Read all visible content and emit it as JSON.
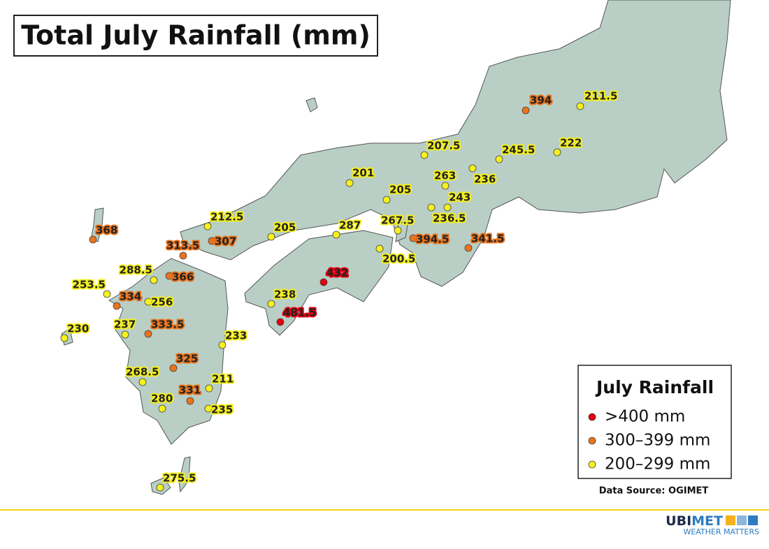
{
  "title": "Total July Rainfall (mm)",
  "stations": [
    {
      "value": 394,
      "color": "#e8741c"
    },
    {
      "value": 211.5,
      "color": "#f5f01e"
    },
    {
      "value": 207.5,
      "color": "#f5f01e"
    },
    {
      "value": 245.5,
      "color": "#f5f01e"
    },
    {
      "value": 222,
      "color": "#f5f01e"
    },
    {
      "value": 201,
      "color": "#f5f01e"
    },
    {
      "value": 263,
      "color": "#f5f01e"
    },
    {
      "value": 236,
      "color": "#f5f01e"
    },
    {
      "value": 205,
      "color": "#f5f01e"
    },
    {
      "value": 243,
      "color": "#f5f01e"
    },
    {
      "value": 236.5,
      "color": "#f5f01e"
    },
    {
      "value": 212.5,
      "color": "#f5f01e"
    },
    {
      "value": 205,
      "color": "#f5f01e"
    },
    {
      "value": 287,
      "color": "#f5f01e"
    },
    {
      "value": 267.5,
      "color": "#f5f01e"
    },
    {
      "value": 394.5,
      "color": "#e8741c"
    },
    {
      "value": 341.5,
      "color": "#e8741c"
    },
    {
      "value": 200.5,
      "color": "#f5f01e"
    },
    {
      "value": 368,
      "color": "#e8741c"
    },
    {
      "value": 313.5,
      "color": "#e8741c"
    },
    {
      "value": 307,
      "color": "#e8741c"
    },
    {
      "value": 288.5,
      "color": "#f5f01e"
    },
    {
      "value": 366,
      "color": "#e8741c"
    },
    {
      "value": 432,
      "color": "#e3000f"
    },
    {
      "value": 253.5,
      "color": "#f5f01e"
    },
    {
      "value": 334,
      "color": "#e8741c"
    },
    {
      "value": 256,
      "color": "#f5f01e"
    },
    {
      "value": 238,
      "color": "#f5f01e"
    },
    {
      "value": 481.5,
      "color": "#e3000f"
    },
    {
      "value": 230,
      "color": "#f5f01e"
    },
    {
      "value": 237,
      "color": "#f5f01e"
    },
    {
      "value": 333.5,
      "color": "#e8741c"
    },
    {
      "value": 233,
      "color": "#f5f01e"
    },
    {
      "value": 325,
      "color": "#e8741c"
    },
    {
      "value": 268.5,
      "color": "#f5f01e"
    },
    {
      "value": 211,
      "color": "#f5f01e"
    },
    {
      "value": 331,
      "color": "#e8741c"
    },
    {
      "value": 280,
      "color": "#f5f01e"
    },
    {
      "value": 235,
      "color": "#f5f01e"
    },
    {
      "value": 275.5,
      "color": "#f5f01e"
    }
  ],
  "legend": {
    "title": "July Rainfall",
    "items": [
      {
        "label": ">400 mm",
        "color": "#e3000f"
      },
      {
        "label": "300–399 mm",
        "color": "#e8741c"
      },
      {
        "label": "200–299 mm",
        "color": "#f5f01e"
      }
    ]
  },
  "source": "Data Source: OGIMET",
  "logo": {
    "brand": [
      "UBI",
      "MET"
    ],
    "tagline": "WEATHER MATTERS"
  }
}
